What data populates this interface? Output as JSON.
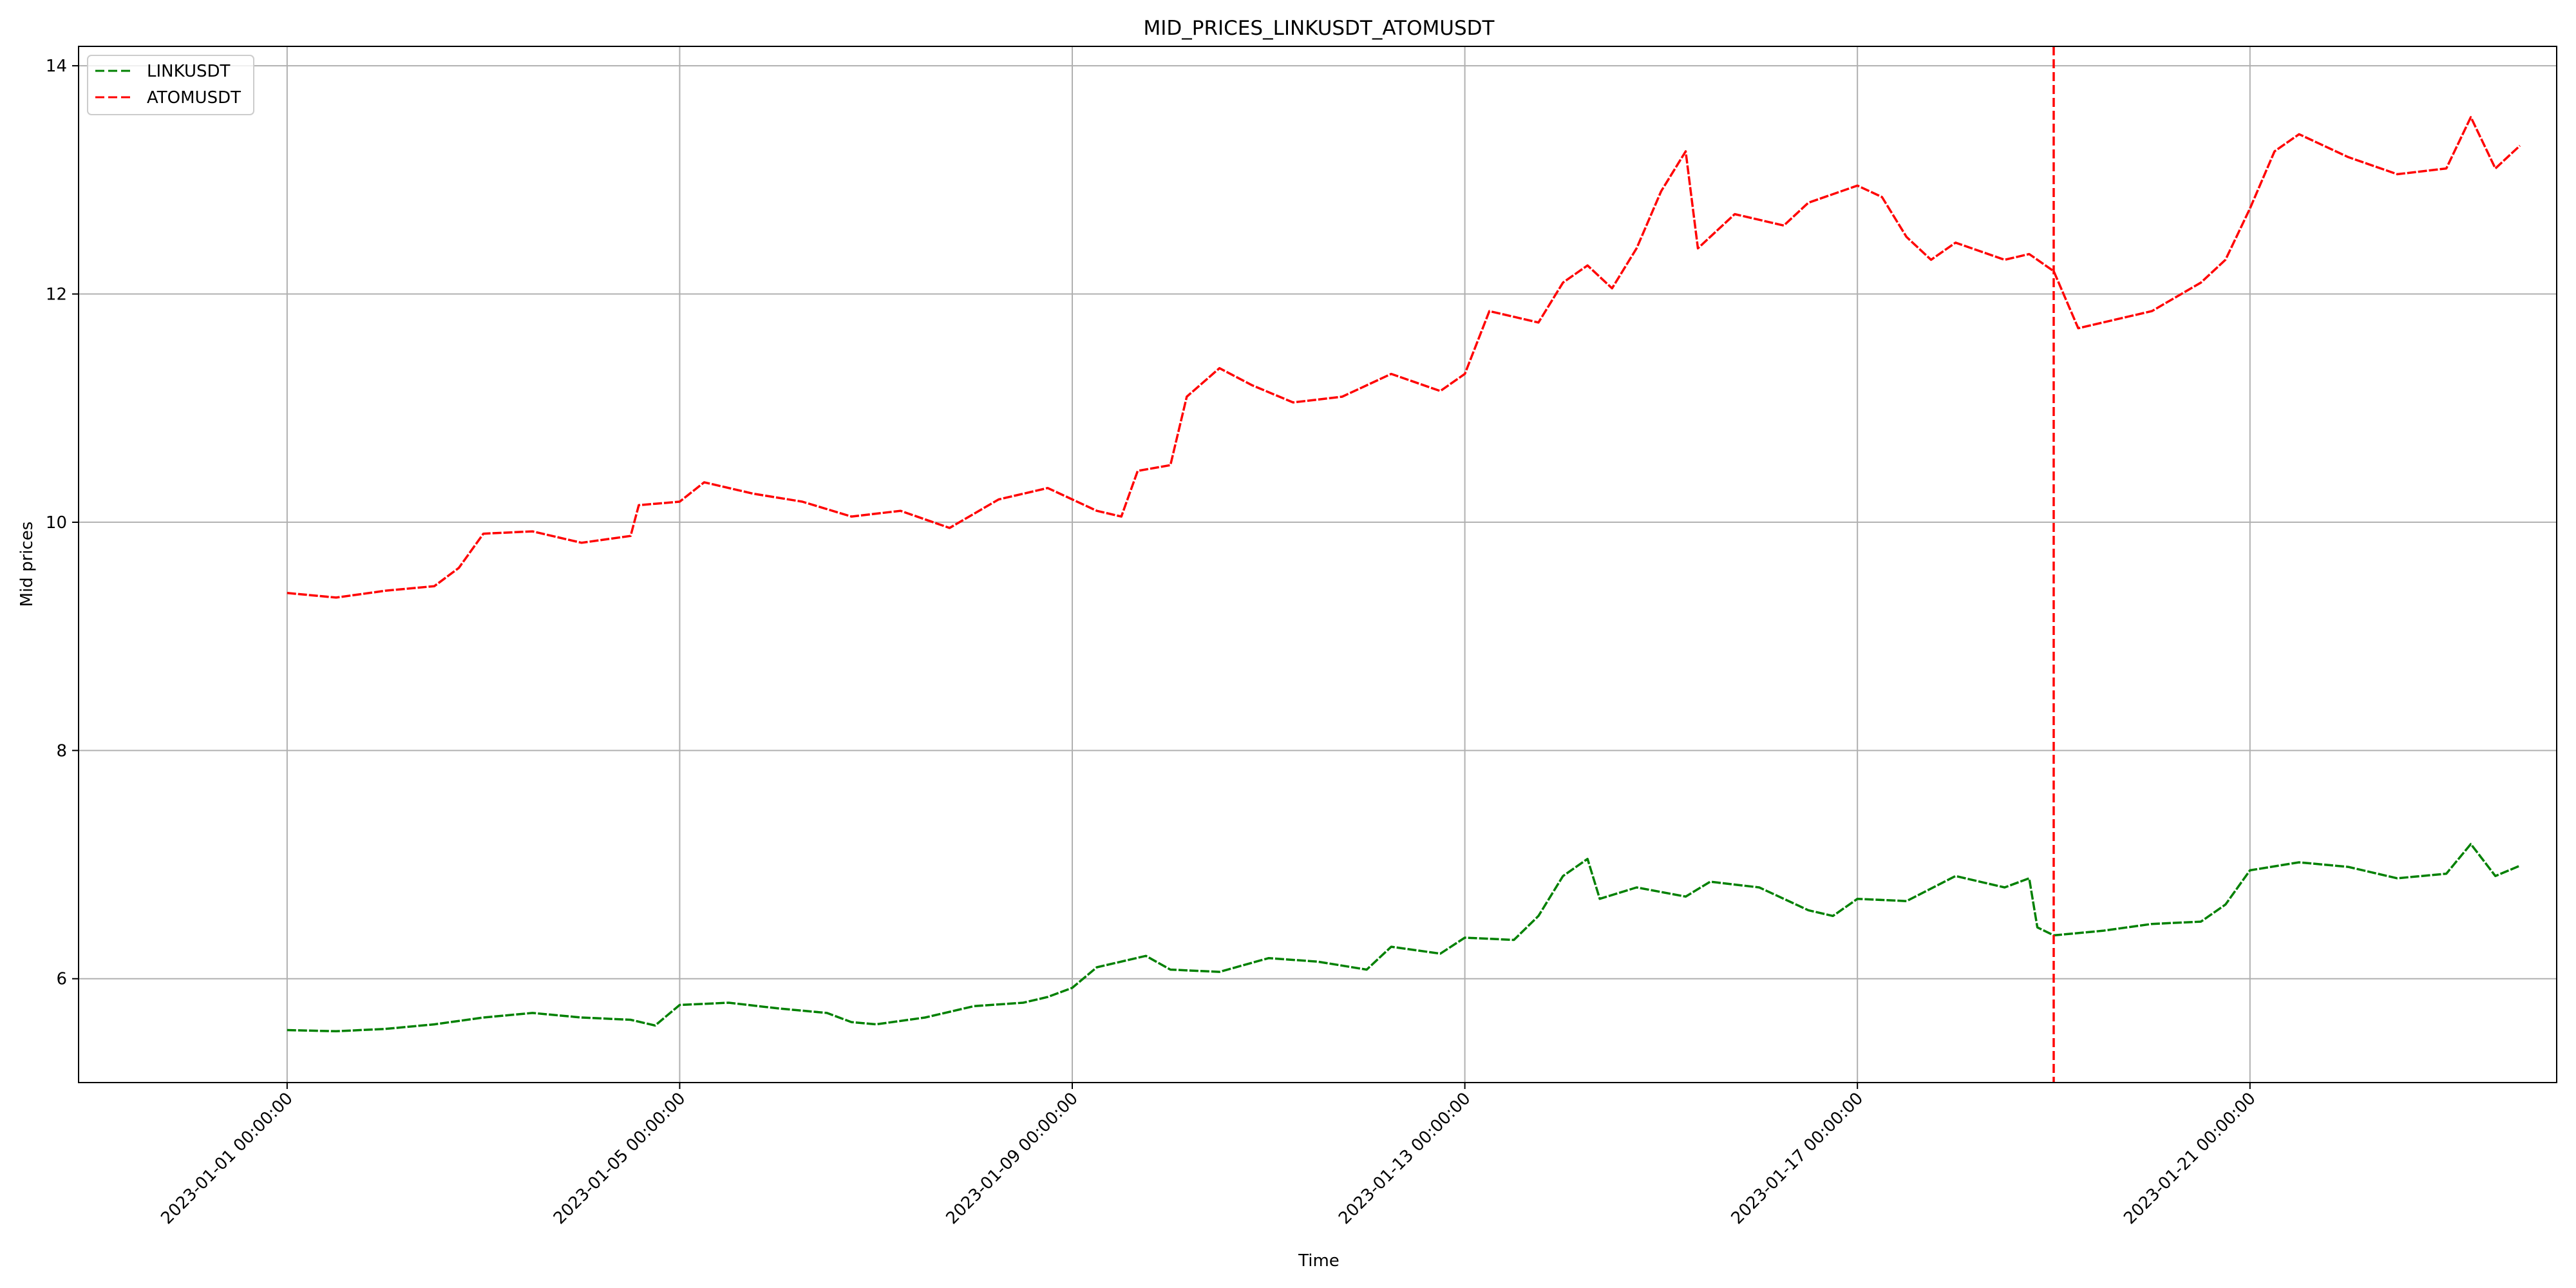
{
  "chart_data": {
    "type": "line",
    "title": "MID_PRICES_LINKUSDT_ATOMUSDT",
    "xlabel": "Time",
    "ylabel": "Mid prices",
    "x_type": "datetime",
    "xlim": [
      "2022-12-29T21:00:00",
      "2023-01-24T03:00:00"
    ],
    "ylim": [
      5.09,
      14.17
    ],
    "x_ticks": [
      {
        "value": "2023-01-01T00:00:00",
        "label": "2023-01-01 00:00:00"
      },
      {
        "value": "2023-01-05T00:00:00",
        "label": "2023-01-05 00:00:00"
      },
      {
        "value": "2023-01-09T00:00:00",
        "label": "2023-01-09 00:00:00"
      },
      {
        "value": "2023-01-13T00:00:00",
        "label": "2023-01-13 00:00:00"
      },
      {
        "value": "2023-01-17T00:00:00",
        "label": "2023-01-17 00:00:00"
      },
      {
        "value": "2023-01-21T00:00:00",
        "label": "2023-01-21 00:00:00"
      }
    ],
    "y_ticks": [
      {
        "value": 6,
        "label": "6"
      },
      {
        "value": 8,
        "label": "8"
      },
      {
        "value": 10,
        "label": "10"
      },
      {
        "value": 12,
        "label": "12"
      },
      {
        "value": 14,
        "label": "14"
      }
    ],
    "grid": true,
    "legend_position": "top-left",
    "vertical_line": {
      "x": "2023-01-19T00:00:00",
      "color": "#ff0000",
      "style": "dashed"
    },
    "series": [
      {
        "name": "LINKUSDT",
        "color": "#008000",
        "line_style": "dashed",
        "points": [
          [
            "2023-01-01T00:00:00",
            5.55
          ],
          [
            "2023-01-01T12:00:00",
            5.54
          ],
          [
            "2023-01-02T00:00:00",
            5.56
          ],
          [
            "2023-01-02T12:00:00",
            5.6
          ],
          [
            "2023-01-03T00:00:00",
            5.66
          ],
          [
            "2023-01-03T12:00:00",
            5.7
          ],
          [
            "2023-01-04T00:00:00",
            5.66
          ],
          [
            "2023-01-04T12:00:00",
            5.64
          ],
          [
            "2023-01-04T18:00:00",
            5.59
          ],
          [
            "2023-01-05T00:00:00",
            5.77
          ],
          [
            "2023-01-05T12:00:00",
            5.79
          ],
          [
            "2023-01-06T00:00:00",
            5.74
          ],
          [
            "2023-01-06T12:00:00",
            5.7
          ],
          [
            "2023-01-06T18:00:00",
            5.62
          ],
          [
            "2023-01-07T00:00:00",
            5.6
          ],
          [
            "2023-01-07T12:00:00",
            5.66
          ],
          [
            "2023-01-08T00:00:00",
            5.76
          ],
          [
            "2023-01-08T12:00:00",
            5.79
          ],
          [
            "2023-01-08T18:00:00",
            5.84
          ],
          [
            "2023-01-09T00:00:00",
            5.92
          ],
          [
            "2023-01-09T06:00:00",
            6.1
          ],
          [
            "2023-01-09T18:00:00",
            6.2
          ],
          [
            "2023-01-10T00:00:00",
            6.08
          ],
          [
            "2023-01-10T12:00:00",
            6.06
          ],
          [
            "2023-01-11T00:00:00",
            6.18
          ],
          [
            "2023-01-11T12:00:00",
            6.15
          ],
          [
            "2023-01-12T00:00:00",
            6.08
          ],
          [
            "2023-01-12T06:00:00",
            6.28
          ],
          [
            "2023-01-12T18:00:00",
            6.22
          ],
          [
            "2023-01-13T00:00:00",
            6.36
          ],
          [
            "2023-01-13T12:00:00",
            6.34
          ],
          [
            "2023-01-13T18:00:00",
            6.55
          ],
          [
            "2023-01-14T00:00:00",
            6.9
          ],
          [
            "2023-01-14T06:00:00",
            7.05
          ],
          [
            "2023-01-14T09:00:00",
            6.7
          ],
          [
            "2023-01-14T18:00:00",
            6.8
          ],
          [
            "2023-01-15T06:00:00",
            6.72
          ],
          [
            "2023-01-15T12:00:00",
            6.85
          ],
          [
            "2023-01-16T00:00:00",
            6.8
          ],
          [
            "2023-01-16T12:00:00",
            6.6
          ],
          [
            "2023-01-16T18:00:00",
            6.55
          ],
          [
            "2023-01-17T00:00:00",
            6.7
          ],
          [
            "2023-01-17T12:00:00",
            6.68
          ],
          [
            "2023-01-18T00:00:00",
            6.9
          ],
          [
            "2023-01-18T12:00:00",
            6.8
          ],
          [
            "2023-01-18T18:00:00",
            6.88
          ],
          [
            "2023-01-18T20:00:00",
            6.45
          ],
          [
            "2023-01-19T00:00:00",
            6.38
          ],
          [
            "2023-01-19T12:00:00",
            6.42
          ],
          [
            "2023-01-20T00:00:00",
            6.48
          ],
          [
            "2023-01-20T12:00:00",
            6.5
          ],
          [
            "2023-01-20T18:00:00",
            6.65
          ],
          [
            "2023-01-21T00:00:00",
            6.95
          ],
          [
            "2023-01-21T12:00:00",
            7.02
          ],
          [
            "2023-01-22T00:00:00",
            6.98
          ],
          [
            "2023-01-22T12:00:00",
            6.88
          ],
          [
            "2023-01-23T00:00:00",
            6.92
          ],
          [
            "2023-01-23T06:00:00",
            7.18
          ],
          [
            "2023-01-23T12:00:00",
            6.9
          ],
          [
            "2023-01-23T18:00:00",
            6.99
          ]
        ]
      },
      {
        "name": "ATOMUSDT",
        "color": "#ff0000",
        "line_style": "dashed",
        "points": [
          [
            "2023-01-01T00:00:00",
            9.38
          ],
          [
            "2023-01-01T12:00:00",
            9.34
          ],
          [
            "2023-01-02T00:00:00",
            9.4
          ],
          [
            "2023-01-02T12:00:00",
            9.44
          ],
          [
            "2023-01-02T18:00:00",
            9.6
          ],
          [
            "2023-01-03T00:00:00",
            9.9
          ],
          [
            "2023-01-03T12:00:00",
            9.92
          ],
          [
            "2023-01-04T00:00:00",
            9.82
          ],
          [
            "2023-01-04T12:00:00",
            9.88
          ],
          [
            "2023-01-04T14:00:00",
            10.15
          ],
          [
            "2023-01-05T00:00:00",
            10.18
          ],
          [
            "2023-01-05T06:00:00",
            10.35
          ],
          [
            "2023-01-05T18:00:00",
            10.25
          ],
          [
            "2023-01-06T06:00:00",
            10.18
          ],
          [
            "2023-01-06T18:00:00",
            10.05
          ],
          [
            "2023-01-07T06:00:00",
            10.1
          ],
          [
            "2023-01-07T18:00:00",
            9.95
          ],
          [
            "2023-01-08T06:00:00",
            10.2
          ],
          [
            "2023-01-08T18:00:00",
            10.3
          ],
          [
            "2023-01-09T00:00:00",
            10.2
          ],
          [
            "2023-01-09T06:00:00",
            10.1
          ],
          [
            "2023-01-09T12:00:00",
            10.05
          ],
          [
            "2023-01-09T16:00:00",
            10.45
          ],
          [
            "2023-01-10T00:00:00",
            10.5
          ],
          [
            "2023-01-10T04:00:00",
            11.1
          ],
          [
            "2023-01-10T12:00:00",
            11.35
          ],
          [
            "2023-01-10T20:00:00",
            11.2
          ],
          [
            "2023-01-11T06:00:00",
            11.05
          ],
          [
            "2023-01-11T18:00:00",
            11.1
          ],
          [
            "2023-01-12T06:00:00",
            11.3
          ],
          [
            "2023-01-12T18:00:00",
            11.15
          ],
          [
            "2023-01-13T00:00:00",
            11.3
          ],
          [
            "2023-01-13T06:00:00",
            11.85
          ],
          [
            "2023-01-13T18:00:00",
            11.75
          ],
          [
            "2023-01-14T00:00:00",
            12.1
          ],
          [
            "2023-01-14T06:00:00",
            12.25
          ],
          [
            "2023-01-14T12:00:00",
            12.05
          ],
          [
            "2023-01-14T18:00:00",
            12.4
          ],
          [
            "2023-01-15T00:00:00",
            12.9
          ],
          [
            "2023-01-15T06:00:00",
            13.25
          ],
          [
            "2023-01-15T09:00:00",
            12.4
          ],
          [
            "2023-01-15T18:00:00",
            12.7
          ],
          [
            "2023-01-16T06:00:00",
            12.6
          ],
          [
            "2023-01-16T12:00:00",
            12.8
          ],
          [
            "2023-01-17T00:00:00",
            12.95
          ],
          [
            "2023-01-17T06:00:00",
            12.85
          ],
          [
            "2023-01-17T12:00:00",
            12.5
          ],
          [
            "2023-01-17T18:00:00",
            12.3
          ],
          [
            "2023-01-18T00:00:00",
            12.45
          ],
          [
            "2023-01-18T12:00:00",
            12.3
          ],
          [
            "2023-01-18T18:00:00",
            12.35
          ],
          [
            "2023-01-19T00:00:00",
            12.2
          ],
          [
            "2023-01-19T06:00:00",
            11.7
          ],
          [
            "2023-01-19T12:00:00",
            11.75
          ],
          [
            "2023-01-20T00:00:00",
            11.85
          ],
          [
            "2023-01-20T12:00:00",
            12.1
          ],
          [
            "2023-01-20T18:00:00",
            12.3
          ],
          [
            "2023-01-21T00:00:00",
            12.75
          ],
          [
            "2023-01-21T06:00:00",
            13.25
          ],
          [
            "2023-01-21T12:00:00",
            13.4
          ],
          [
            "2023-01-22T00:00:00",
            13.2
          ],
          [
            "2023-01-22T12:00:00",
            13.05
          ],
          [
            "2023-01-23T00:00:00",
            13.1
          ],
          [
            "2023-01-23T06:00:00",
            13.55
          ],
          [
            "2023-01-23T12:00:00",
            13.1
          ],
          [
            "2023-01-23T18:00:00",
            13.3
          ]
        ]
      }
    ]
  }
}
